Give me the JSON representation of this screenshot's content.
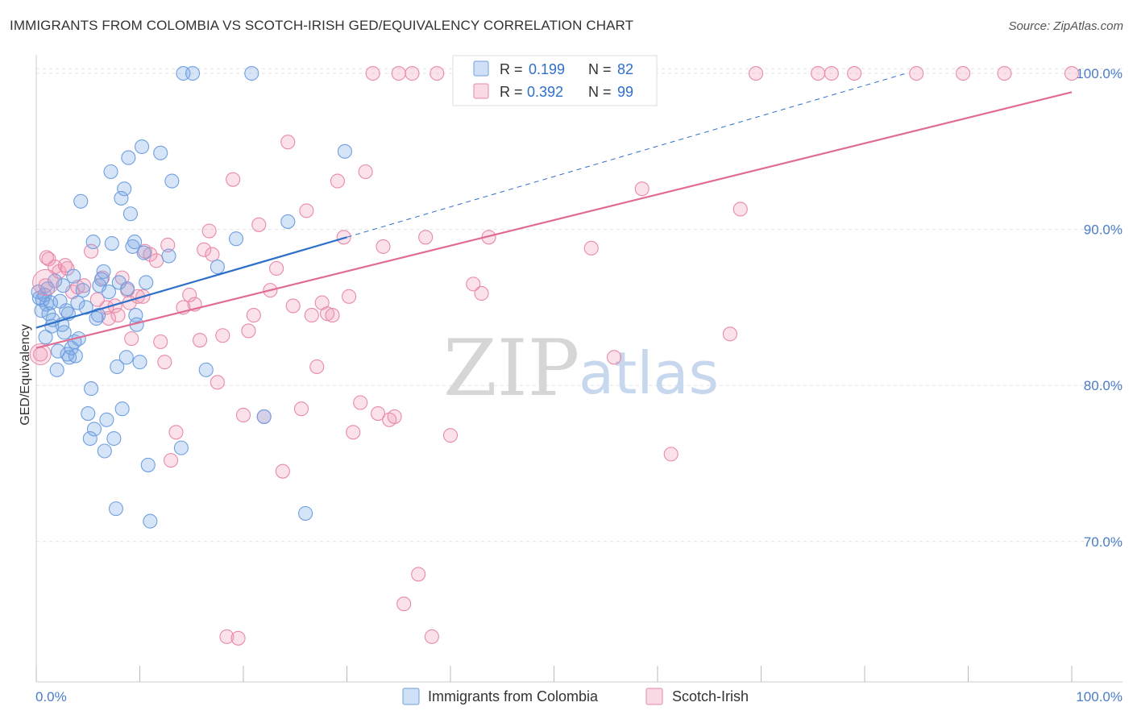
{
  "header": {
    "title": "IMMIGRANTS FROM COLOMBIA VS SCOTCH-IRISH GED/EQUIVALENCY CORRELATION CHART",
    "source": "Source: ZipAtlas.com"
  },
  "watermark": {
    "zip": "ZIP",
    "atlas": "atlas"
  },
  "colors": {
    "colombia": "#6f9fe0",
    "colombia_fill": "rgba(120,165,230,0.30)",
    "colombia_line": "#2e6fc9",
    "scotch": "#e889a8",
    "scotch_fill": "rgba(240,150,180,0.28)",
    "scotch_line": "#e06b93",
    "grid": "#e3e3e3",
    "axis_label": "#4a7cc7"
  },
  "chart_data": {
    "type": "scatter",
    "title": "IMMIGRANTS FROM COLOMBIA VS SCOTCH-IRISH GED/EQUIVALENCY CORRELATION CHART",
    "xlabel": "",
    "ylabel": "GED/Equivalency",
    "xlim": [
      0,
      100
    ],
    "ylim": [
      61,
      101.5
    ],
    "x_tick_labels": [
      "0.0%",
      "100.0%"
    ],
    "y_ticks": [
      70,
      80,
      90,
      100
    ],
    "y_tick_labels": [
      "70.0%",
      "80.0%",
      "90.0%",
      "100.0%"
    ],
    "grid": true,
    "legend_position": "top-center",
    "legend": [
      {
        "series": "Immigrants from Colombia",
        "r_label": "R =",
        "r": "0.199",
        "n_label": "N =",
        "n": "82"
      },
      {
        "series": "Scotch-Irish",
        "r_label": "R =",
        "r": "0.392",
        "n_label": "N =",
        "n": "99"
      }
    ],
    "series": [
      {
        "name": "Immigrants from Colombia",
        "trend": {
          "x0": 0,
          "y0": 83.7,
          "x1": 30,
          "y1": 89.5,
          "dash_to_x": 84,
          "dash_to_y": 100.0
        },
        "points": [
          [
            0.3,
            85.6
          ],
          [
            0.5,
            84.8
          ],
          [
            0.6,
            85.5
          ],
          [
            0.8,
            85.8
          ],
          [
            1.0,
            85.2
          ],
          [
            1.2,
            84.6
          ],
          [
            1.4,
            85.3
          ],
          [
            1.5,
            83.8
          ],
          [
            1.6,
            84.2
          ],
          [
            1.8,
            86.7
          ],
          [
            2.0,
            81.0
          ],
          [
            2.1,
            82.2
          ],
          [
            2.3,
            85.4
          ],
          [
            2.5,
            83.9
          ],
          [
            2.7,
            83.4
          ],
          [
            2.9,
            84.8
          ],
          [
            3.0,
            82.0
          ],
          [
            3.2,
            81.8
          ],
          [
            3.4,
            82.4
          ],
          [
            3.6,
            87.0
          ],
          [
            3.7,
            82.8
          ],
          [
            3.8,
            81.9
          ],
          [
            4.0,
            85.3
          ],
          [
            4.3,
            91.8
          ],
          [
            4.5,
            86.1
          ],
          [
            4.8,
            85.0
          ],
          [
            5.0,
            78.2
          ],
          [
            5.2,
            76.6
          ],
          [
            5.3,
            79.8
          ],
          [
            5.5,
            89.2
          ],
          [
            5.6,
            77.2
          ],
          [
            5.8,
            84.3
          ],
          [
            6.1,
            86.4
          ],
          [
            6.3,
            86.8
          ],
          [
            6.5,
            87.3
          ],
          [
            6.6,
            75.8
          ],
          [
            6.8,
            77.8
          ],
          [
            7.0,
            86.0
          ],
          [
            7.2,
            93.7
          ],
          [
            7.3,
            89.1
          ],
          [
            7.5,
            76.6
          ],
          [
            7.7,
            72.1
          ],
          [
            7.8,
            81.2
          ],
          [
            8.0,
            86.6
          ],
          [
            8.2,
            92.0
          ],
          [
            8.3,
            78.5
          ],
          [
            8.5,
            92.6
          ],
          [
            8.7,
            81.8
          ],
          [
            8.9,
            94.6
          ],
          [
            9.1,
            91.0
          ],
          [
            9.3,
            88.9
          ],
          [
            9.5,
            89.2
          ],
          [
            9.6,
            84.5
          ],
          [
            9.7,
            83.9
          ],
          [
            10.0,
            81.5
          ],
          [
            10.2,
            95.3
          ],
          [
            10.4,
            88.5
          ],
          [
            10.6,
            86.6
          ],
          [
            10.8,
            74.9
          ],
          [
            11.0,
            71.3
          ],
          [
            12.0,
            94.9
          ],
          [
            12.8,
            88.3
          ],
          [
            13.1,
            93.1
          ],
          [
            14.0,
            76.0
          ],
          [
            14.2,
            100.0
          ],
          [
            15.1,
            100.0
          ],
          [
            16.4,
            81.0
          ],
          [
            17.5,
            87.6
          ],
          [
            19.3,
            89.4
          ],
          [
            20.8,
            100.0
          ],
          [
            22.0,
            78.0
          ],
          [
            24.3,
            90.5
          ],
          [
            26.0,
            71.8
          ],
          [
            29.8,
            95.0
          ],
          [
            0.2,
            86.0
          ],
          [
            0.9,
            83.1
          ],
          [
            1.1,
            86.2
          ],
          [
            2.6,
            86.4
          ],
          [
            3.1,
            84.6
          ],
          [
            4.1,
            83.0
          ],
          [
            6.0,
            84.5
          ],
          [
            8.8,
            86.2
          ]
        ]
      },
      {
        "name": "Scotch-Irish",
        "trend": {
          "x0": 0,
          "y0": 82.4,
          "x1": 100,
          "y1": 98.8
        },
        "points": [
          [
            0.4,
            82.0
          ],
          [
            0.9,
            86.4
          ],
          [
            1.2,
            88.1
          ],
          [
            1.8,
            87.6
          ],
          [
            2.2,
            87.3
          ],
          [
            3.0,
            87.5
          ],
          [
            3.5,
            86.0
          ],
          [
            4.0,
            86.3
          ],
          [
            4.6,
            86.4
          ],
          [
            5.3,
            88.6
          ],
          [
            5.9,
            85.5
          ],
          [
            6.4,
            86.9
          ],
          [
            7.0,
            84.3
          ],
          [
            7.6,
            85.1
          ],
          [
            7.9,
            84.5
          ],
          [
            8.3,
            86.9
          ],
          [
            8.8,
            86.1
          ],
          [
            9.2,
            83.0
          ],
          [
            9.8,
            85.7
          ],
          [
            10.3,
            85.7
          ],
          [
            10.5,
            88.6
          ],
          [
            11.0,
            88.4
          ],
          [
            11.6,
            88.0
          ],
          [
            12.0,
            82.8
          ],
          [
            12.4,
            81.5
          ],
          [
            12.7,
            89.0
          ],
          [
            13.0,
            75.2
          ],
          [
            13.5,
            77.0
          ],
          [
            14.2,
            85.0
          ],
          [
            14.8,
            85.8
          ],
          [
            15.3,
            85.2
          ],
          [
            15.8,
            82.9
          ],
          [
            16.2,
            88.7
          ],
          [
            16.7,
            89.9
          ],
          [
            17.0,
            88.4
          ],
          [
            17.5,
            80.2
          ],
          [
            18.0,
            83.2
          ],
          [
            18.4,
            63.9
          ],
          [
            19.0,
            93.2
          ],
          [
            19.5,
            63.8
          ],
          [
            20.0,
            78.1
          ],
          [
            20.5,
            83.5
          ],
          [
            21.0,
            84.5
          ],
          [
            21.5,
            90.3
          ],
          [
            22.0,
            78.0
          ],
          [
            22.6,
            86.1
          ],
          [
            23.2,
            87.5
          ],
          [
            23.8,
            74.5
          ],
          [
            24.3,
            95.6
          ],
          [
            24.8,
            85.1
          ],
          [
            25.6,
            78.5
          ],
          [
            26.1,
            91.2
          ],
          [
            26.6,
            84.5
          ],
          [
            27.1,
            81.2
          ],
          [
            27.6,
            85.3
          ],
          [
            28.1,
            84.6
          ],
          [
            28.6,
            84.5
          ],
          [
            29.1,
            93.1
          ],
          [
            29.7,
            89.5
          ],
          [
            30.2,
            85.7
          ],
          [
            30.6,
            77.0
          ],
          [
            31.3,
            78.9
          ],
          [
            31.8,
            93.7
          ],
          [
            32.5,
            100.0
          ],
          [
            33.0,
            78.2
          ],
          [
            33.5,
            88.9
          ],
          [
            34.1,
            77.8
          ],
          [
            34.6,
            78.0
          ],
          [
            35.0,
            100.0
          ],
          [
            35.5,
            66.0
          ],
          [
            36.3,
            100.0
          ],
          [
            36.9,
            67.9
          ],
          [
            37.6,
            89.5
          ],
          [
            38.2,
            63.9
          ],
          [
            38.7,
            100.0
          ],
          [
            40.0,
            76.8
          ],
          [
            42.2,
            86.5
          ],
          [
            43.0,
            85.9
          ],
          [
            43.7,
            89.5
          ],
          [
            46.6,
            100.0
          ],
          [
            50.5,
            100.0
          ],
          [
            53.6,
            88.8
          ],
          [
            55.8,
            81.8
          ],
          [
            58.5,
            92.6
          ],
          [
            61.3,
            75.6
          ],
          [
            67.0,
            83.3
          ],
          [
            68.0,
            91.3
          ],
          [
            69.5,
            100.0
          ],
          [
            75.5,
            100.0
          ],
          [
            76.8,
            100.0
          ],
          [
            79.0,
            100.0
          ],
          [
            85.0,
            100.0
          ],
          [
            89.5,
            100.0
          ],
          [
            93.5,
            100.0
          ],
          [
            100.0,
            100.0
          ],
          [
            1.0,
            88.2
          ],
          [
            2.8,
            87.7
          ],
          [
            6.8,
            85.0
          ],
          [
            9.0,
            85.3
          ]
        ]
      }
    ]
  },
  "bottom_legend": {
    "colombia_label": "Immigrants from Colombia",
    "scotch_label": "Scotch-Irish"
  }
}
